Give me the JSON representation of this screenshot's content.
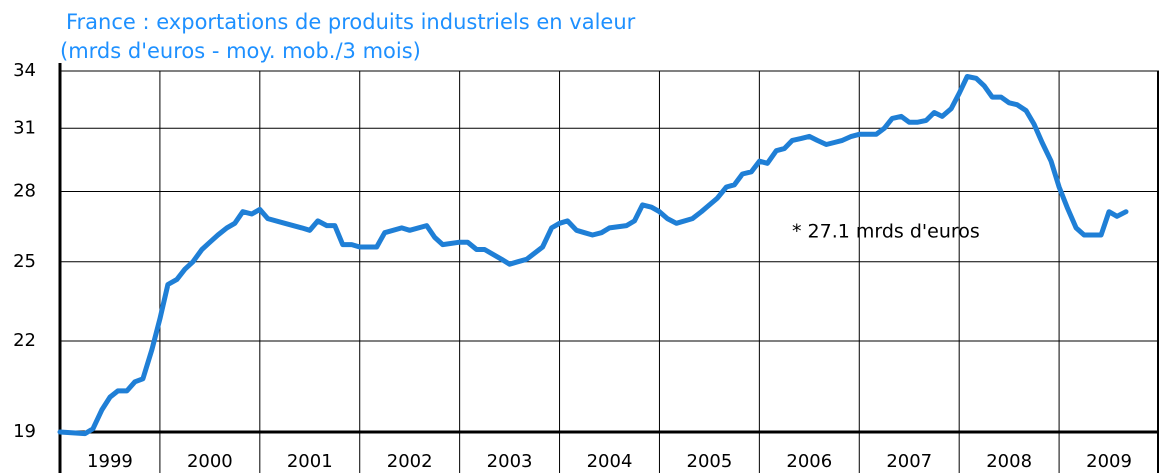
{
  "chart_data": {
    "type": "line",
    "title": "France : exportations de produits industriels en valeur",
    "subtitle": "(mrds d'euros - moy. mob./3 mois)",
    "annotation": "* 27.1 mrds d'euros",
    "log_y": true,
    "grid": true,
    "xlim": [
      1999.0,
      2010.0
    ],
    "xticks": [
      2000,
      2001,
      2002,
      2003,
      2004,
      2005,
      2006,
      2007,
      2008,
      2009
    ],
    "x_labels": [
      "1999",
      "2000",
      "2001",
      "2002",
      "2003",
      "2004",
      "2005",
      "2006",
      "2007",
      "2008",
      "2009"
    ],
    "ylim": [
      19,
      34
    ],
    "yticks": [
      19,
      22,
      25,
      28,
      31,
      34
    ],
    "series": [
      {
        "color": "#1f7fd6",
        "x": [
          1999.0,
          1999.25,
          1999.33,
          1999.42,
          1999.5,
          1999.58,
          1999.67,
          1999.75,
          1999.83,
          1999.92,
          2000.0,
          2000.08,
          2000.17,
          2000.25,
          2000.33,
          2000.42,
          2000.5,
          2000.58,
          2000.67,
          2000.75,
          2000.83,
          2000.92,
          2001.0,
          2001.08,
          2001.25,
          2001.42,
          2001.5,
          2001.58,
          2001.67,
          2001.75,
          2001.83,
          2001.92,
          2002.0,
          2002.17,
          2002.25,
          2002.42,
          2002.5,
          2002.67,
          2002.75,
          2002.83,
          2003.0,
          2003.08,
          2003.17,
          2003.25,
          2003.42,
          2003.5,
          2003.58,
          2003.67,
          2003.83,
          2003.92,
          2004.0,
          2004.08,
          2004.17,
          2004.25,
          2004.33,
          2004.42,
          2004.5,
          2004.67,
          2004.75,
          2004.83,
          2004.92,
          2005.0,
          2005.08,
          2005.17,
          2005.33,
          2005.42,
          2005.5,
          2005.58,
          2005.67,
          2005.75,
          2005.83,
          2005.92,
          2006.0,
          2006.08,
          2006.17,
          2006.25,
          2006.33,
          2006.42,
          2006.5,
          2006.58,
          2006.67,
          2006.75,
          2006.83,
          2006.92,
          2007.0,
          2007.17,
          2007.25,
          2007.33,
          2007.42,
          2007.5,
          2007.58,
          2007.67,
          2007.75,
          2007.83,
          2007.92,
          2008.0,
          2008.08,
          2008.17,
          2008.25,
          2008.33,
          2008.42,
          2008.5,
          2008.58,
          2008.67,
          2008.75,
          2008.83,
          2008.92,
          2009.0,
          2009.08,
          2009.17,
          2009.25,
          2009.33,
          2009.42,
          2009.5,
          2009.58,
          2009.67
        ],
        "values": [
          19.0,
          18.95,
          19.1,
          19.7,
          20.1,
          20.3,
          20.3,
          20.6,
          20.7,
          21.7,
          22.8,
          24.1,
          24.3,
          24.7,
          25.0,
          25.5,
          25.8,
          26.1,
          26.4,
          26.6,
          27.1,
          27.0,
          27.2,
          26.8,
          26.6,
          26.4,
          26.3,
          26.7,
          26.5,
          26.5,
          25.7,
          25.7,
          25.6,
          25.6,
          26.2,
          26.4,
          26.3,
          26.5,
          26.0,
          25.7,
          25.8,
          25.8,
          25.5,
          25.5,
          25.1,
          24.9,
          25.0,
          25.1,
          25.6,
          26.4,
          26.6,
          26.7,
          26.3,
          26.2,
          26.1,
          26.2,
          26.4,
          26.5,
          26.7,
          27.4,
          27.3,
          27.1,
          26.8,
          26.6,
          26.8,
          27.1,
          27.4,
          27.7,
          28.2,
          28.3,
          28.8,
          28.9,
          29.4,
          29.3,
          29.9,
          30.0,
          30.4,
          30.5,
          30.6,
          30.4,
          30.2,
          30.3,
          30.4,
          30.6,
          30.7,
          30.7,
          31.0,
          31.5,
          31.6,
          31.3,
          31.3,
          31.4,
          31.8,
          31.6,
          32.0,
          32.8,
          33.7,
          33.6,
          33.2,
          32.6,
          32.6,
          32.3,
          32.2,
          31.9,
          31.2,
          30.3,
          29.4,
          28.2,
          27.3,
          26.4,
          26.1,
          26.1,
          26.1,
          27.1,
          26.9,
          27.1
        ]
      }
    ]
  }
}
